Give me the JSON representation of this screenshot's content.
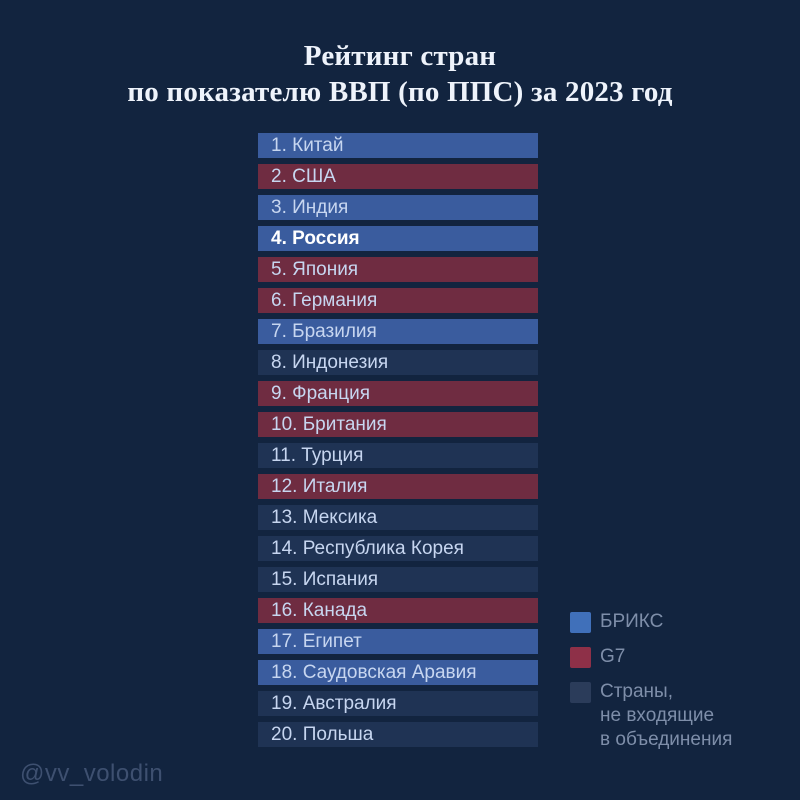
{
  "title": {
    "line1": "Рейтинг стран",
    "line2": "по показателю ВВП (по ППС) за 2023 год"
  },
  "colors": {
    "background": "#12243f",
    "brics_bar": "#3a5c9e",
    "g7_bar": "#6f2c41",
    "other_bar": "#1f3354",
    "brics_legend": "#4070ba",
    "g7_legend": "#8e3048",
    "other_legend": "#2b3c5a",
    "bar_text": "#c7d6f0",
    "highlight_text": "#ffffff",
    "title_text": "#eef3fb",
    "legend_text": "#7e8ea9",
    "watermark_text": "#3e5070"
  },
  "legend": [
    {
      "label": "БРИКС",
      "group": "БРИКС",
      "color_key": "brics_legend"
    },
    {
      "label": "G7",
      "group": "G7",
      "color_key": "g7_legend"
    },
    {
      "label": "Страны,\nне входящие\nв объединения",
      "group": null,
      "color_key": "other_legend"
    }
  ],
  "watermark": "@vv_volodin",
  "chart_data": {
    "type": "table",
    "title": "Рейтинг стран по показателю ВВП (по ППС) за 2023 год",
    "columns": [
      "rank",
      "country",
      "group"
    ],
    "highlighted_rank": 4,
    "legend_entries": [
      "БРИКС",
      "G7",
      "Страны, не входящие в объединения"
    ],
    "legend_position": "bottom-right",
    "rows": [
      {
        "rank": 1,
        "country": "Китай",
        "group": "БРИКС"
      },
      {
        "rank": 2,
        "country": "США",
        "group": "G7"
      },
      {
        "rank": 3,
        "country": "Индия",
        "group": "БРИКС"
      },
      {
        "rank": 4,
        "country": "Россия",
        "group": "БРИКС"
      },
      {
        "rank": 5,
        "country": "Япония",
        "group": "G7"
      },
      {
        "rank": 6,
        "country": "Германия",
        "group": "G7"
      },
      {
        "rank": 7,
        "country": "Бразилия",
        "group": "БРИКС"
      },
      {
        "rank": 8,
        "country": "Индонезия",
        "group": null
      },
      {
        "rank": 9,
        "country": "Франция",
        "group": "G7"
      },
      {
        "rank": 10,
        "country": "Британия",
        "group": "G7"
      },
      {
        "rank": 11,
        "country": "Турция",
        "group": null
      },
      {
        "rank": 12,
        "country": "Италия",
        "group": "G7"
      },
      {
        "rank": 13,
        "country": "Мексика",
        "group": null
      },
      {
        "rank": 14,
        "country": "Республика Корея",
        "group": null
      },
      {
        "rank": 15,
        "country": "Испания",
        "group": null
      },
      {
        "rank": 16,
        "country": "Канада",
        "group": "G7"
      },
      {
        "rank": 17,
        "country": "Египет",
        "group": "БРИКС"
      },
      {
        "rank": 18,
        "country": "Саудовская Аравия",
        "group": "БРИКС"
      },
      {
        "rank": 19,
        "country": "Австралия",
        "group": null
      },
      {
        "rank": 20,
        "country": "Польша",
        "group": null
      }
    ]
  }
}
